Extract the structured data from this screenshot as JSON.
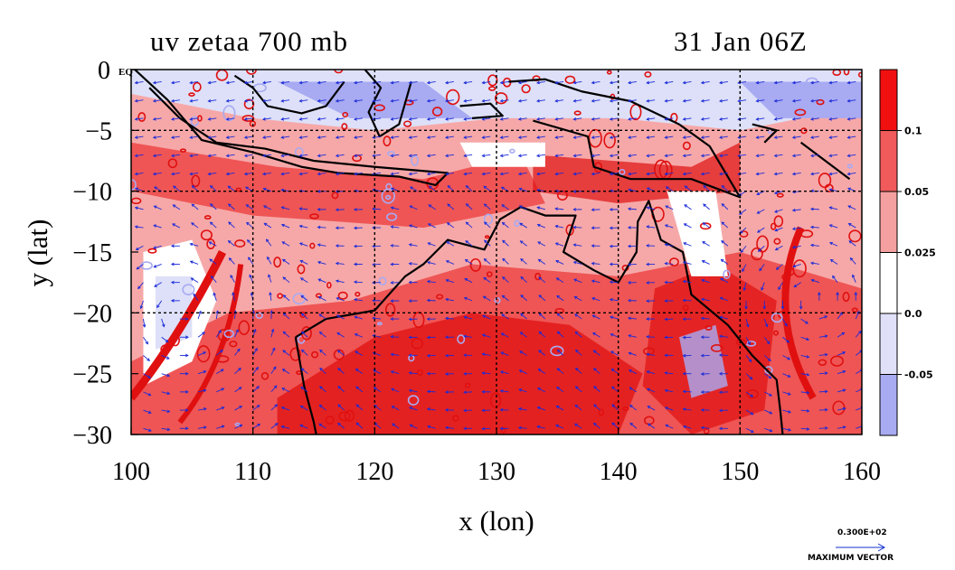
{
  "chart_data": {
    "type": "heatmap",
    "title_left": "uv zetaa 700 mb",
    "title_right": "31 Jan 06Z",
    "xlabel": "x (lon)",
    "ylabel": "y (lat)",
    "xlim": [
      100,
      160
    ],
    "ylim": [
      -30,
      0
    ],
    "x_ticks": [
      100,
      110,
      120,
      130,
      140,
      150,
      160
    ],
    "y_ticks": [
      0,
      -5,
      -10,
      -15,
      -20,
      -25,
      -30
    ],
    "y_tick_labels": [
      "0 EQ",
      "−5",
      "−10",
      "−15",
      "−20",
      "−25",
      "−30"
    ],
    "grid": true,
    "grid_lines_x": [
      110,
      120,
      130,
      140,
      150
    ],
    "grid_lines_y": [
      -5,
      -10,
      -20
    ],
    "colorbar": {
      "levels": [
        {
          "label": "0.1",
          "color": "#f01010"
        },
        {
          "label": "0.05",
          "color": "#f05a5a"
        },
        {
          "label": "0.025",
          "color": "#f5a0a0"
        },
        {
          "label": "0.0",
          "color": "#ffffff"
        },
        {
          "label": "-0.05",
          "color": "#e0e0f8"
        },
        {
          "label": "",
          "color": "#a8aaf2"
        }
      ],
      "ticks": [
        "0.1",
        "0.05",
        "0.025",
        "0.0",
        "-0.05"
      ]
    },
    "vector_legend": {
      "value": "0.300E+02",
      "label": "MAXIMUM VECTOR",
      "color": "#1030d0"
    },
    "colors": {
      "strong_positive": "#e01010",
      "positive": "#ef5555",
      "weak_positive": "#f6a8a8",
      "negative": "#a8aaf2",
      "weak_negative": "#dde0f8",
      "coastline": "#000000",
      "vectors": "#1a2ad8"
    }
  }
}
